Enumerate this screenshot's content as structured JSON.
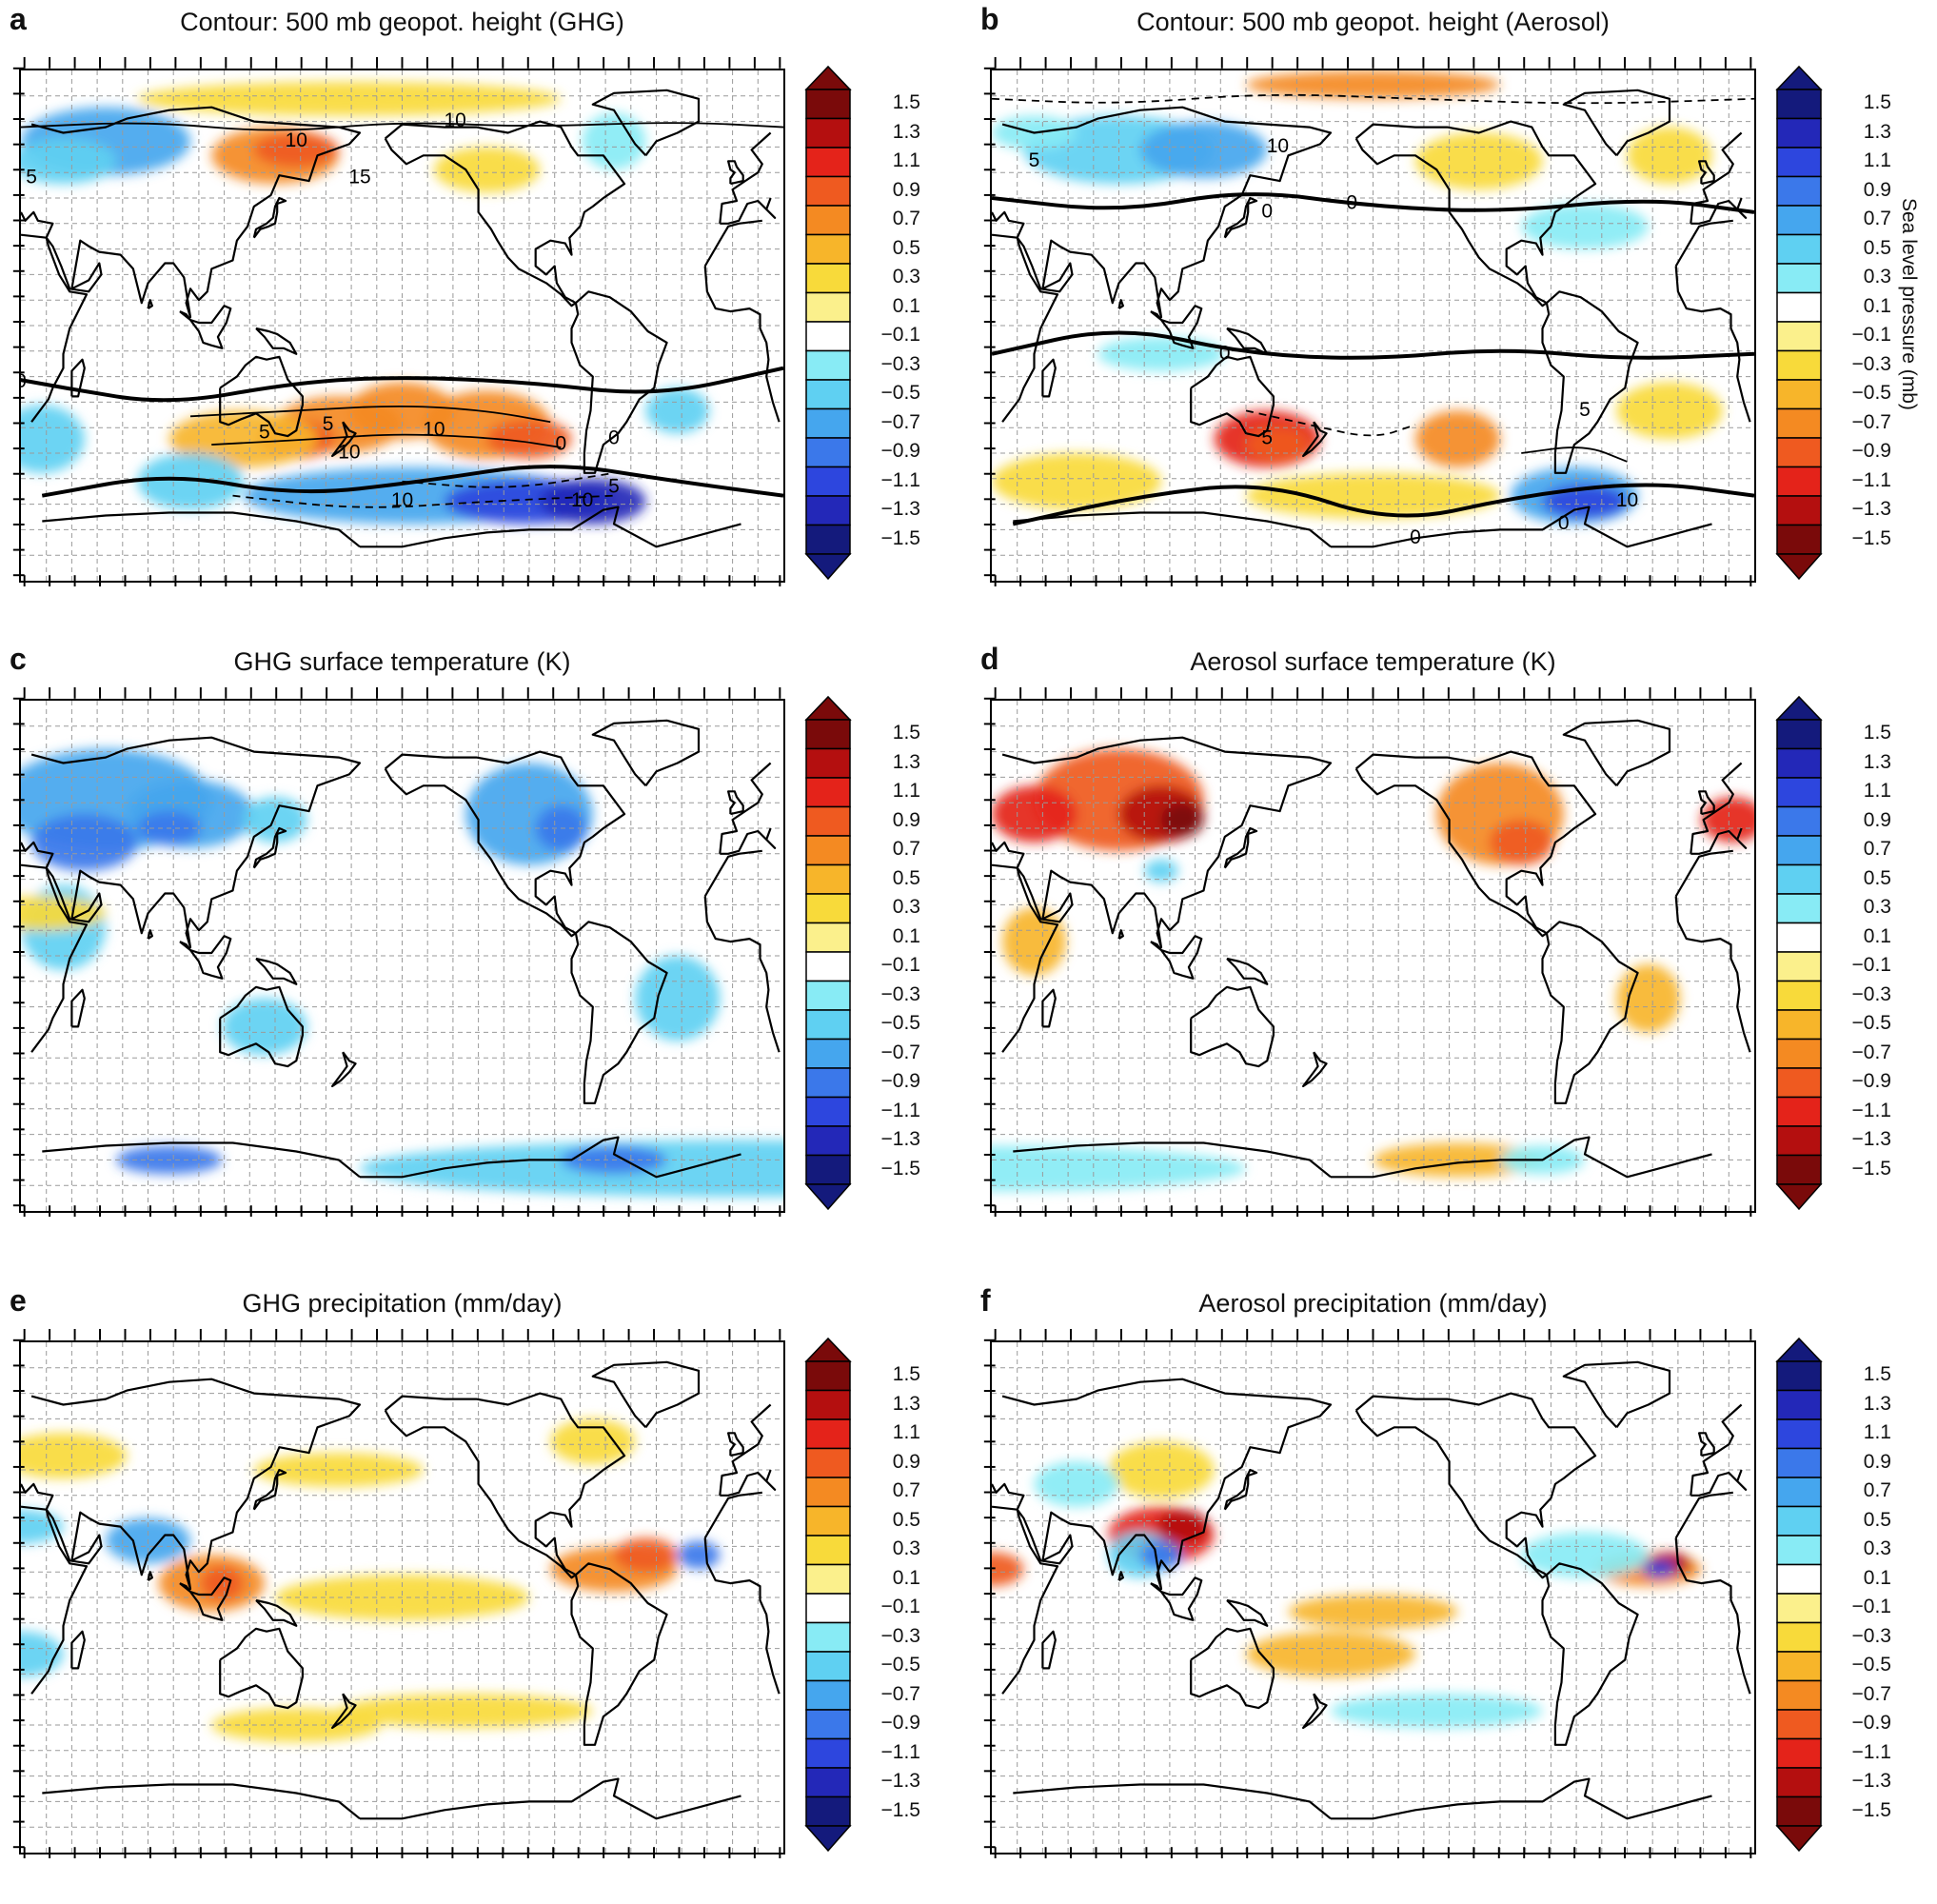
{
  "panels": [
    {
      "id": "a",
      "letter": "a",
      "title": "Contour: 500 mb geopot. height (GHG)",
      "field": "sea level pressure (GHG)",
      "palette": "warm-positive",
      "contour_labels": [
        "10",
        "5",
        "15",
        "10",
        "0",
        "10",
        "5",
        "5",
        "10",
        "0",
        "10",
        "10",
        "5",
        "0"
      ]
    },
    {
      "id": "b",
      "letter": "b",
      "title": "Contour: 500 mb geopot. height (Aerosol)",
      "field": "sea level pressure (Aerosol)",
      "palette": "cool-positive",
      "contour_labels": [
        "5",
        "10",
        "0",
        "0",
        "5",
        "5",
        "10",
        "0",
        "0",
        "0"
      ]
    },
    {
      "id": "c",
      "letter": "c",
      "title": "GHG surface temperature (K)",
      "field": "surface temperature (GHG)",
      "palette": "warm-positive",
      "contour_labels": []
    },
    {
      "id": "d",
      "letter": "d",
      "title": "Aerosol surface temperature (K)",
      "field": "surface temperature (Aerosol)",
      "palette": "cool-positive",
      "contour_labels": []
    },
    {
      "id": "e",
      "letter": "e",
      "title": "GHG precipitation (mm/day)",
      "field": "precipitation (GHG)",
      "palette": "warm-positive",
      "contour_labels": []
    },
    {
      "id": "f",
      "letter": "f",
      "title": "Aerosol precipitation (mm/day)",
      "field": "precipitation (Aerosol)",
      "palette": "cool-positive",
      "contour_labels": []
    }
  ],
  "colorbar": {
    "labels": [
      "1.5",
      "1.3",
      "1.1",
      "0.9",
      "0.7",
      "0.5",
      "0.3",
      "0.1",
      "−0.1",
      "−0.3",
      "−0.5",
      "−0.7",
      "−0.9",
      "−1.1",
      "−1.3",
      "−1.5"
    ],
    "warm_positive_colors": [
      "#7a0a0a",
      "#b40f0f",
      "#e4231a",
      "#ef5a20",
      "#f48a22",
      "#f7b52a",
      "#f8da3a",
      "#fbf08c",
      "#ffffff",
      "#88ebf5",
      "#5fd0f2",
      "#45a6ee",
      "#3b78ea",
      "#2d46de",
      "#2328b8",
      "#141a7c"
    ],
    "cool_positive_colors": [
      "#141a7c",
      "#2328b8",
      "#2d46de",
      "#3b78ea",
      "#45a6ee",
      "#5fd0f2",
      "#88ebf5",
      "#ffffff",
      "#fbf08c",
      "#f8da3a",
      "#f7b52a",
      "#f48a22",
      "#ef5a20",
      "#e4231a",
      "#b40f0f",
      "#7a0a0a"
    ],
    "side_title": "Sea level pressure (mb)"
  },
  "colors": {
    "land_outline": "#000000",
    "grid": "#9a9a9a"
  }
}
